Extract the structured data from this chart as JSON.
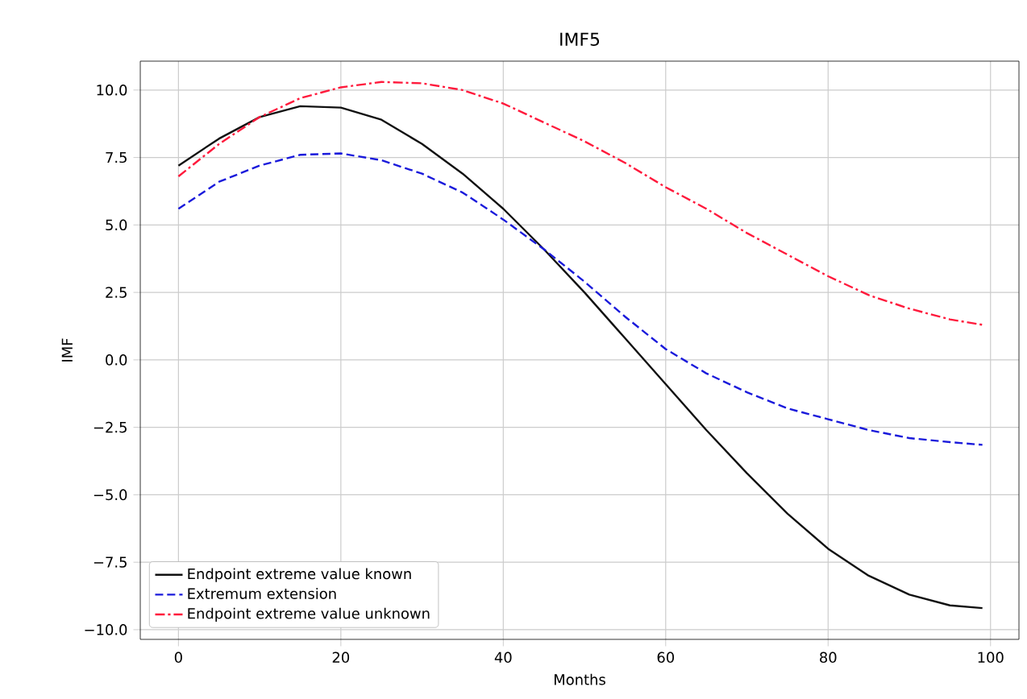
{
  "chart_data": {
    "type": "line",
    "title": "IMF5",
    "xlabel": "Months",
    "ylabel": "IMF",
    "x": [
      0,
      5,
      10,
      15,
      20,
      25,
      30,
      35,
      40,
      45,
      50,
      55,
      60,
      65,
      70,
      75,
      80,
      85,
      90,
      95,
      99
    ],
    "series": [
      {
        "name": "Endpoint extreme value known",
        "color": "#111111",
        "line_style": "solid",
        "values": [
          7.2,
          8.2,
          9.0,
          9.4,
          9.35,
          8.9,
          8.0,
          6.9,
          5.6,
          4.1,
          2.5,
          0.8,
          -0.9,
          -2.6,
          -4.2,
          -5.7,
          -7.0,
          -8.0,
          -8.7,
          -9.1,
          -9.2
        ]
      },
      {
        "name": "Extremum extension",
        "color": "#1a1adb",
        "line_style": "dashed",
        "values": [
          5.6,
          6.6,
          7.2,
          7.6,
          7.65,
          7.4,
          6.9,
          6.2,
          5.2,
          4.1,
          2.9,
          1.6,
          0.4,
          -0.5,
          -1.2,
          -1.8,
          -2.2,
          -2.6,
          -2.9,
          -3.05,
          -3.15
        ]
      },
      {
        "name": "Endpoint extreme value unknown",
        "color": "#ff1a3c",
        "line_style": "dashdot",
        "values": [
          6.8,
          8.0,
          9.0,
          9.7,
          10.1,
          10.3,
          10.25,
          10.0,
          9.5,
          8.8,
          8.1,
          7.3,
          6.4,
          5.6,
          4.7,
          3.9,
          3.1,
          2.4,
          1.9,
          1.5,
          1.3
        ]
      }
    ],
    "xlim": [
      -4.7,
      103.5
    ],
    "ylim": [
      -10.36,
      11.07
    ],
    "xticks": [
      0,
      20,
      40,
      60,
      80,
      100
    ],
    "yticks": [
      {
        "value": -10,
        "label": "−10.0"
      },
      {
        "value": -7.5,
        "label": "−7.5"
      },
      {
        "value": -5,
        "label": "−5.0"
      },
      {
        "value": -2.5,
        "label": "−2.5"
      },
      {
        "value": 0,
        "label": "0.0"
      },
      {
        "value": 2.5,
        "label": "2.5"
      },
      {
        "value": 5,
        "label": "5.0"
      },
      {
        "value": 7.5,
        "label": "7.5"
      },
      {
        "value": 10,
        "label": "10.0"
      }
    ],
    "grid": true,
    "legend": "bottom left",
    "marker": "none"
  }
}
